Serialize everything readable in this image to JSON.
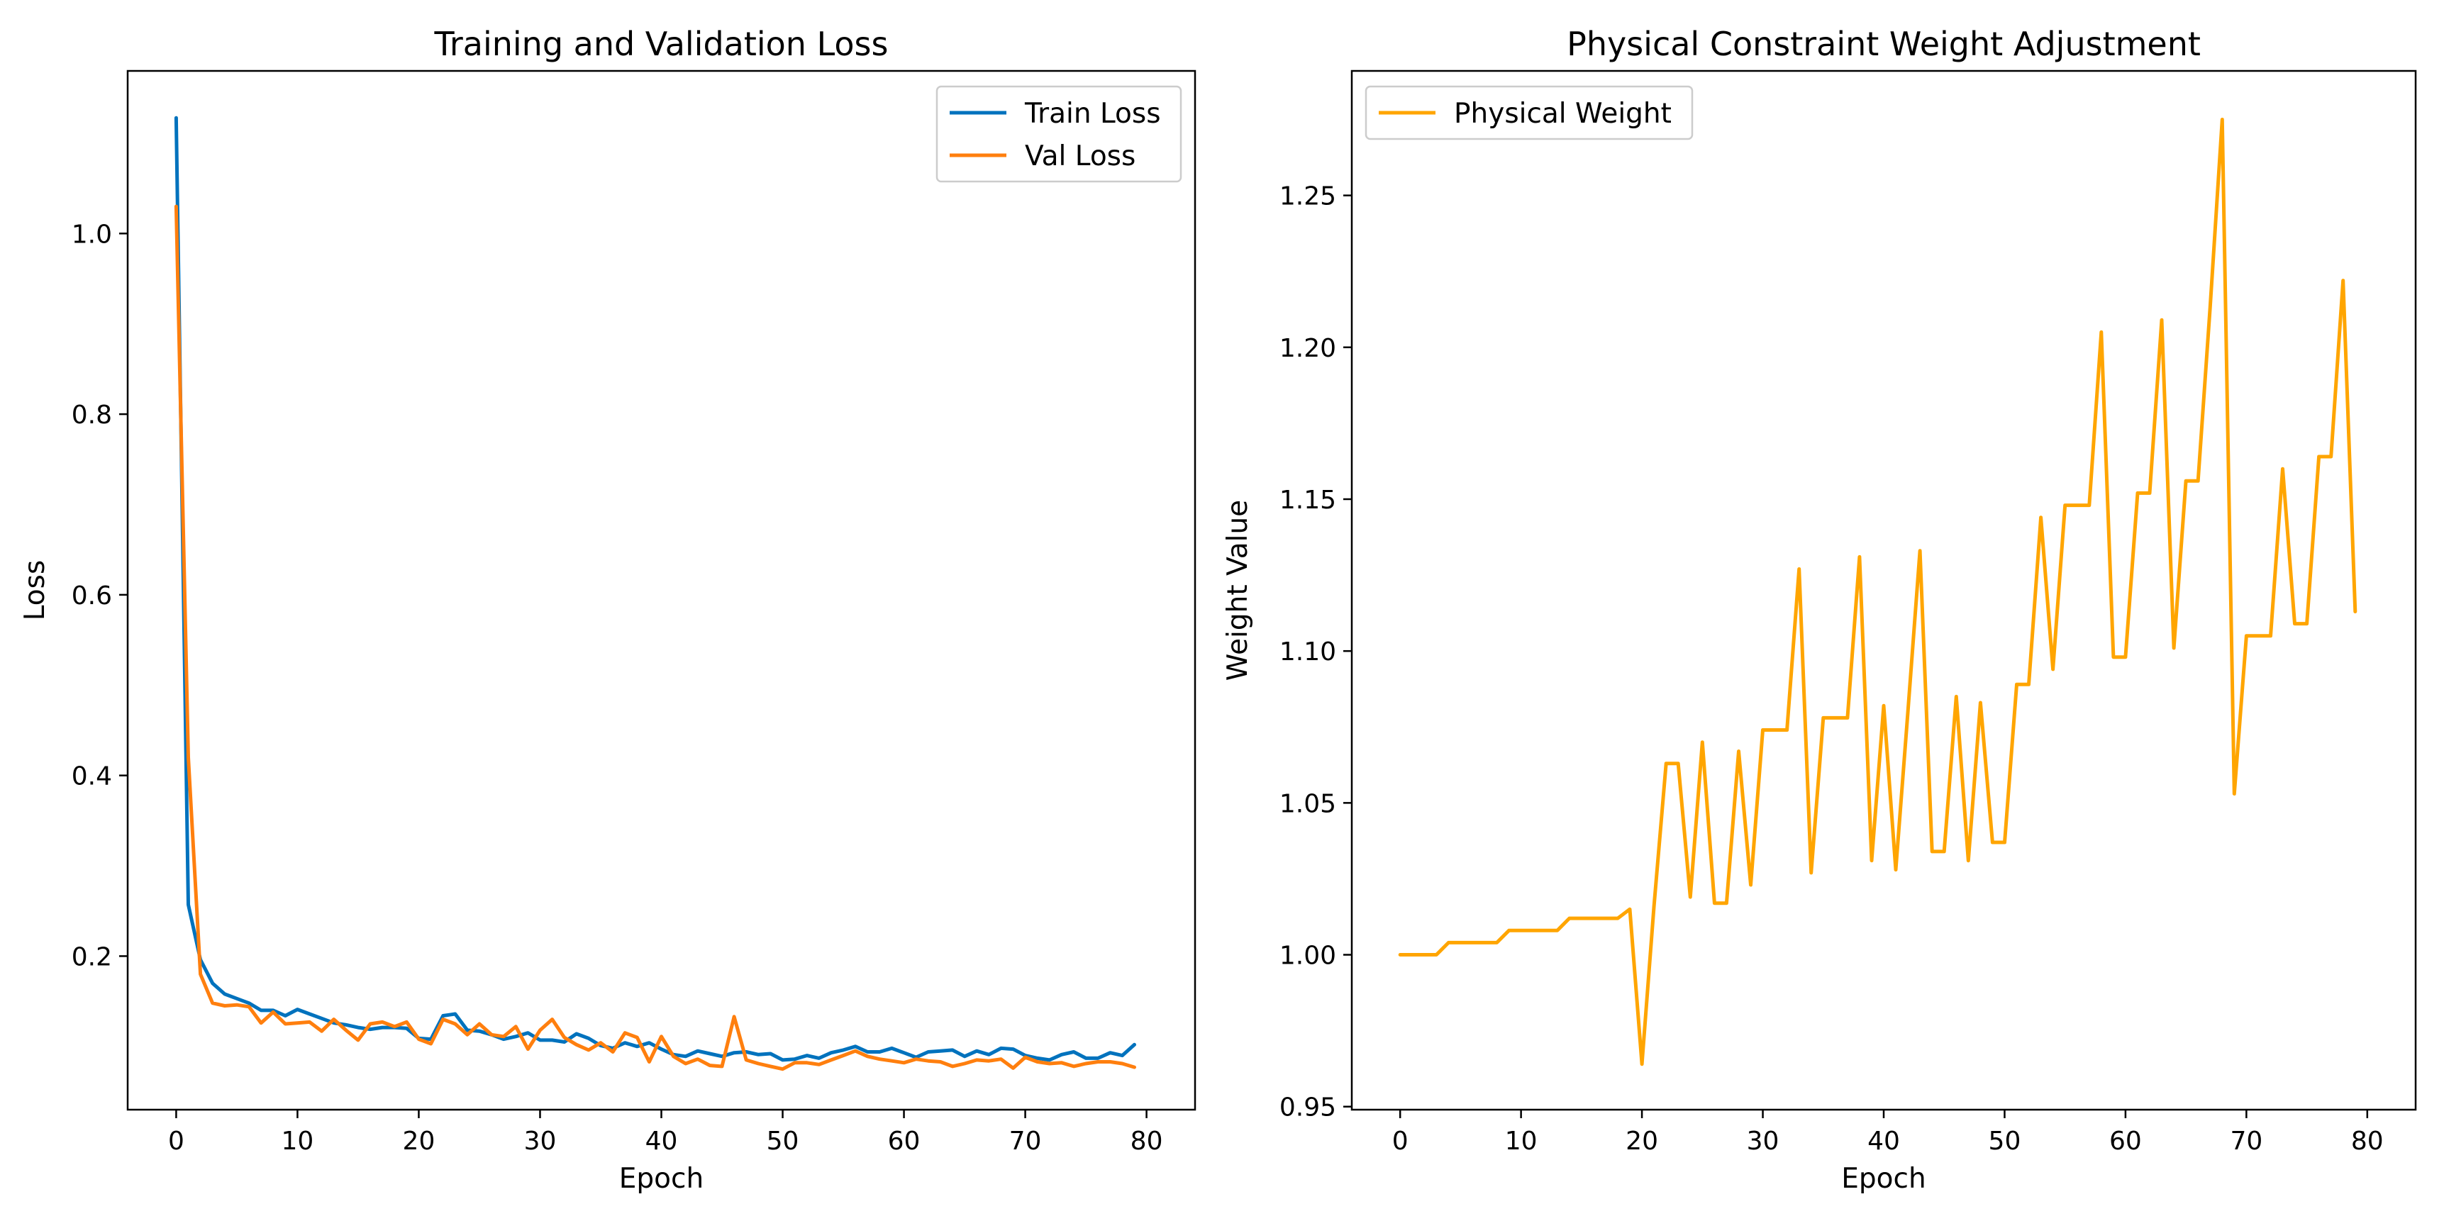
{
  "chart_data": [
    {
      "type": "line",
      "title": "Training and Validation Loss",
      "xlabel": "Epoch",
      "ylabel": "Loss",
      "xlim": [
        -4,
        84
      ],
      "ylim": [
        0.03,
        1.18
      ],
      "xticks": [
        0,
        10,
        20,
        30,
        40,
        50,
        60,
        70,
        80
      ],
      "xtick_labels": [
        "0",
        "10",
        "20",
        "30",
        "40",
        "50",
        "60",
        "70",
        "80"
      ],
      "yticks": [
        0.2,
        0.4,
        0.6,
        0.8,
        1.0
      ],
      "ytick_labels": [
        "0.2",
        "0.4",
        "0.6",
        "0.8",
        "1.0"
      ],
      "legend_position": "top-right",
      "grid": false,
      "x": [
        0,
        1,
        2,
        3,
        4,
        5,
        6,
        7,
        8,
        9,
        10,
        11,
        12,
        13,
        14,
        15,
        16,
        17,
        18,
        19,
        20,
        21,
        22,
        23,
        24,
        25,
        26,
        27,
        28,
        29,
        30,
        31,
        32,
        33,
        34,
        35,
        36,
        37,
        38,
        39,
        40,
        41,
        42,
        43,
        44,
        45,
        46,
        47,
        48,
        49,
        50,
        51,
        52,
        53,
        54,
        55,
        56,
        57,
        58,
        59,
        60,
        61,
        62,
        63,
        64,
        65,
        66,
        67,
        68,
        69,
        70,
        71,
        72,
        73,
        74,
        75,
        76,
        77,
        78,
        79
      ],
      "series": [
        {
          "name": "Train Loss",
          "color": "#0072BD",
          "values": [
            1.128,
            0.257,
            0.196,
            0.17,
            0.158,
            0.153,
            0.148,
            0.14,
            0.14,
            0.134,
            0.141,
            0.136,
            0.131,
            0.126,
            0.124,
            0.121,
            0.119,
            0.121,
            0.121,
            0.12,
            0.109,
            0.108,
            0.134,
            0.136,
            0.118,
            0.117,
            0.113,
            0.108,
            0.111,
            0.115,
            0.107,
            0.107,
            0.105,
            0.114,
            0.109,
            0.101,
            0.098,
            0.104,
            0.1,
            0.104,
            0.097,
            0.091,
            0.089,
            0.095,
            0.092,
            0.089,
            0.093,
            0.094,
            0.091,
            0.092,
            0.085,
            0.086,
            0.09,
            0.087,
            0.093,
            0.096,
            0.1,
            0.094,
            0.094,
            0.098,
            0.093,
            0.088,
            0.094,
            0.095,
            0.096,
            0.089,
            0.095,
            0.091,
            0.098,
            0.097,
            0.09,
            0.087,
            0.085,
            0.091,
            0.094,
            0.087,
            0.087,
            0.093,
            0.09,
            0.102
          ]
        },
        {
          "name": "Val Loss",
          "color": "#FF7F0E",
          "values": [
            1.03,
            0.42,
            0.18,
            0.148,
            0.145,
            0.146,
            0.144,
            0.126,
            0.138,
            0.125,
            0.126,
            0.127,
            0.117,
            0.13,
            0.118,
            0.107,
            0.125,
            0.127,
            0.122,
            0.127,
            0.108,
            0.103,
            0.13,
            0.125,
            0.113,
            0.125,
            0.113,
            0.111,
            0.122,
            0.097,
            0.118,
            0.13,
            0.11,
            0.102,
            0.096,
            0.104,
            0.094,
            0.115,
            0.11,
            0.083,
            0.111,
            0.089,
            0.081,
            0.086,
            0.079,
            0.078,
            0.133,
            0.085,
            0.081,
            0.078,
            0.075,
            0.082,
            0.082,
            0.08,
            0.085,
            0.09,
            0.095,
            0.089,
            0.086,
            0.084,
            0.082,
            0.086,
            0.084,
            0.083,
            0.078,
            0.081,
            0.085,
            0.084,
            0.086,
            0.076,
            0.088,
            0.083,
            0.081,
            0.082,
            0.078,
            0.081,
            0.083,
            0.083,
            0.081,
            0.077
          ]
        }
      ]
    },
    {
      "type": "line",
      "title": "Physical Constraint Weight Adjustment",
      "xlabel": "Epoch",
      "ylabel": "Weight Value",
      "xlim": [
        -4,
        84
      ],
      "ylim": [
        0.949,
        1.291
      ],
      "xticks": [
        0,
        10,
        20,
        30,
        40,
        50,
        60,
        70,
        80
      ],
      "xtick_labels": [
        "0",
        "10",
        "20",
        "30",
        "40",
        "50",
        "60",
        "70",
        "80"
      ],
      "yticks": [
        0.95,
        1.0,
        1.05,
        1.1,
        1.15,
        1.2,
        1.25
      ],
      "ytick_labels": [
        "0.95",
        "1.00",
        "1.05",
        "1.10",
        "1.15",
        "1.20",
        "1.25"
      ],
      "legend_position": "top-left",
      "grid": false,
      "x": [
        0,
        1,
        2,
        3,
        4,
        5,
        6,
        7,
        8,
        9,
        10,
        11,
        12,
        13,
        14,
        15,
        16,
        17,
        18,
        19,
        20,
        21,
        22,
        23,
        24,
        25,
        26,
        27,
        28,
        29,
        30,
        31,
        32,
        33,
        34,
        35,
        36,
        37,
        38,
        39,
        40,
        41,
        42,
        43,
        44,
        45,
        46,
        47,
        48,
        49,
        50,
        51,
        52,
        53,
        54,
        55,
        56,
        57,
        58,
        59,
        60,
        61,
        62,
        63,
        64,
        65,
        66,
        67,
        68,
        69,
        70,
        71,
        72,
        73,
        74,
        75,
        76,
        77,
        78,
        79
      ],
      "series": [
        {
          "name": "Physical Weight",
          "color": "#FFA500",
          "values": [
            1.0,
            1.0,
            1.0,
            1.0,
            1.004,
            1.004,
            1.004,
            1.004,
            1.004,
            1.008,
            1.008,
            1.008,
            1.008,
            1.008,
            1.012,
            1.012,
            1.012,
            1.012,
            1.012,
            1.015,
            0.964,
            1.016,
            1.063,
            1.063,
            1.019,
            1.07,
            1.017,
            1.017,
            1.067,
            1.023,
            1.074,
            1.074,
            1.074,
            1.127,
            1.027,
            1.078,
            1.078,
            1.078,
            1.131,
            1.031,
            1.082,
            1.028,
            1.08,
            1.133,
            1.034,
            1.034,
            1.085,
            1.031,
            1.083,
            1.037,
            1.037,
            1.089,
            1.089,
            1.144,
            1.094,
            1.148,
            1.148,
            1.148,
            1.205,
            1.098,
            1.098,
            1.152,
            1.152,
            1.209,
            1.101,
            1.156,
            1.156,
            1.213,
            1.275,
            1.053,
            1.105,
            1.105,
            1.105,
            1.16,
            1.109,
            1.109,
            1.164,
            1.164,
            1.222,
            1.113
          ]
        }
      ]
    }
  ]
}
